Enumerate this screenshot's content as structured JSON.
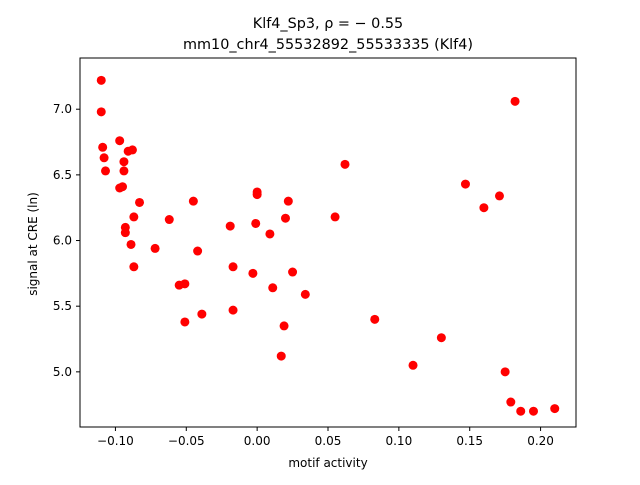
{
  "chart_data": {
    "type": "scatter",
    "title_line1": "Klf4_Sp3, ρ = − 0.55",
    "title_line2": "mm10_chr4_55532892_55533335 (Klf4)",
    "xlabel": "motif activity",
    "ylabel": "signal at CRE (ln)",
    "xlim": [
      -0.125,
      0.225
    ],
    "ylim": [
      4.58,
      7.39
    ],
    "xticks": [
      -0.1,
      -0.05,
      0.0,
      0.05,
      0.1,
      0.15,
      0.2
    ],
    "xtick_labels": [
      "−0.10",
      "−0.05",
      "0.00",
      "0.05",
      "0.10",
      "0.15",
      "0.20"
    ],
    "yticks": [
      5.0,
      5.5,
      6.0,
      6.5,
      7.0
    ],
    "ytick_labels": [
      "5.0",
      "5.5",
      "6.0",
      "6.5",
      "7.0"
    ],
    "grid": false,
    "marker_color": "#ff0000",
    "points": [
      {
        "x": -0.11,
        "y": 7.22
      },
      {
        "x": -0.11,
        "y": 6.98
      },
      {
        "x": -0.109,
        "y": 6.71
      },
      {
        "x": -0.108,
        "y": 6.63
      },
      {
        "x": -0.107,
        "y": 6.53
      },
      {
        "x": -0.097,
        "y": 6.76
      },
      {
        "x": -0.097,
        "y": 6.4
      },
      {
        "x": -0.095,
        "y": 6.41
      },
      {
        "x": -0.094,
        "y": 6.6
      },
      {
        "x": -0.094,
        "y": 6.53
      },
      {
        "x": -0.093,
        "y": 6.1
      },
      {
        "x": -0.093,
        "y": 6.06
      },
      {
        "x": -0.091,
        "y": 6.68
      },
      {
        "x": -0.088,
        "y": 6.69
      },
      {
        "x": -0.089,
        "y": 5.97
      },
      {
        "x": -0.087,
        "y": 6.18
      },
      {
        "x": -0.087,
        "y": 5.8
      },
      {
        "x": -0.083,
        "y": 6.29
      },
      {
        "x": -0.072,
        "y": 5.94
      },
      {
        "x": -0.062,
        "y": 6.16
      },
      {
        "x": -0.055,
        "y": 5.66
      },
      {
        "x": -0.051,
        "y": 5.67
      },
      {
        "x": -0.051,
        "y": 5.38
      },
      {
        "x": -0.045,
        "y": 6.3
      },
      {
        "x": -0.042,
        "y": 5.92
      },
      {
        "x": -0.039,
        "y": 5.44
      },
      {
        "x": -0.019,
        "y": 6.11
      },
      {
        "x": -0.017,
        "y": 5.8
      },
      {
        "x": -0.017,
        "y": 5.47
      },
      {
        "x": -0.003,
        "y": 5.75
      },
      {
        "x": -0.001,
        "y": 6.13
      },
      {
        "x": 0.0,
        "y": 6.37
      },
      {
        "x": 0.0,
        "y": 6.35
      },
      {
        "x": 0.009,
        "y": 6.05
      },
      {
        "x": 0.011,
        "y": 5.64
      },
      {
        "x": 0.017,
        "y": 5.12
      },
      {
        "x": 0.019,
        "y": 5.35
      },
      {
        "x": 0.02,
        "y": 6.17
      },
      {
        "x": 0.022,
        "y": 6.3
      },
      {
        "x": 0.025,
        "y": 5.76
      },
      {
        "x": 0.034,
        "y": 5.59
      },
      {
        "x": 0.055,
        "y": 6.18
      },
      {
        "x": 0.062,
        "y": 6.58
      },
      {
        "x": 0.083,
        "y": 5.4
      },
      {
        "x": 0.11,
        "y": 5.05
      },
      {
        "x": 0.13,
        "y": 5.26
      },
      {
        "x": 0.147,
        "y": 6.43
      },
      {
        "x": 0.16,
        "y": 6.25
      },
      {
        "x": 0.171,
        "y": 6.34
      },
      {
        "x": 0.175,
        "y": 5.0
      },
      {
        "x": 0.179,
        "y": 4.77
      },
      {
        "x": 0.182,
        "y": 7.06
      },
      {
        "x": 0.186,
        "y": 4.7
      },
      {
        "x": 0.195,
        "y": 4.7
      },
      {
        "x": 0.21,
        "y": 4.72
      }
    ]
  }
}
